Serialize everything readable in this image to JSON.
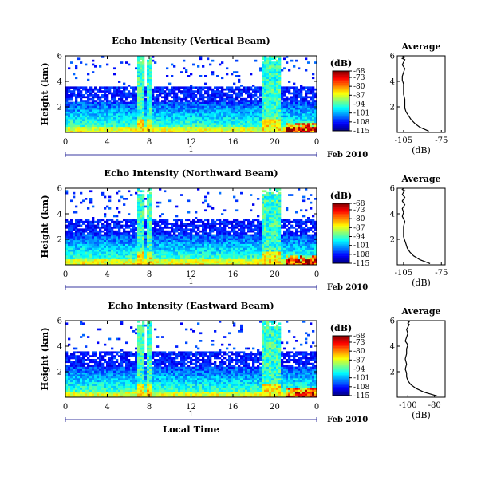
{
  "chart_data": [
    {
      "type": "heatmap",
      "title": "Echo Intensity (Vertical Beam)",
      "ylabel": "Height (km)",
      "xlabel": "",
      "xticks": [
        "0",
        "4",
        "8",
        "12",
        "16",
        "20",
        "0"
      ],
      "yticks": [
        "2",
        "4",
        "6"
      ],
      "xlim": [
        0,
        24
      ],
      "ylim": [
        0,
        6
      ],
      "date_label": "Feb 2010",
      "day_marker": "1",
      "colorbar": {
        "unit": "(dB)",
        "ticks": [
          "-68",
          "-73",
          "-80",
          "-87",
          "-94",
          "-101",
          "-108",
          "-115"
        ],
        "range": [
          -115,
          -68
        ]
      },
      "average_profile": {
        "title": "Average",
        "xlabel": "(dB)",
        "xticks": [
          "-105",
          "-75"
        ],
        "xlim": [
          -110,
          -72
        ],
        "yticks": [
          "2",
          "4",
          "6"
        ],
        "x": [
          -85,
          -92,
          -96,
          -99,
          -101,
          -103,
          -104,
          -104,
          -104,
          -105,
          -105,
          -105,
          -106,
          -106,
          -105,
          -104,
          -106,
          -105,
          -104,
          -106,
          -104,
          -106
        ],
        "y": [
          0.1,
          0.4,
          0.7,
          1.0,
          1.3,
          1.6,
          1.9,
          2.2,
          2.6,
          3.0,
          3.4,
          3.8,
          4.1,
          4.4,
          4.7,
          5.0,
          5.3,
          5.5,
          5.7,
          5.8,
          5.9,
          6.0
        ]
      }
    },
    {
      "type": "heatmap",
      "title": "Echo Intensity (Northward Beam)",
      "ylabel": "Height (km)",
      "xlabel": "",
      "xticks": [
        "0",
        "4",
        "8",
        "12",
        "16",
        "20",
        "0"
      ],
      "yticks": [
        "2",
        "4",
        "6"
      ],
      "xlim": [
        0,
        24
      ],
      "ylim": [
        0,
        6
      ],
      "date_label": "Feb 2010",
      "day_marker": "1",
      "colorbar": {
        "unit": "(dB)",
        "ticks": [
          "-68",
          "-73",
          "-80",
          "-87",
          "-94",
          "-101",
          "-108",
          "-115"
        ],
        "range": [
          -115,
          -68
        ]
      },
      "average_profile": {
        "title": "Average",
        "xlabel": "(dB)",
        "xticks": [
          "-105",
          "-75"
        ],
        "xlim": [
          -110,
          -72
        ],
        "yticks": [
          "2",
          "4",
          "6"
        ],
        "x": [
          -84,
          -92,
          -97,
          -100,
          -102,
          -103,
          -104,
          -105,
          -105,
          -105,
          -104,
          -106,
          -105,
          -106,
          -104,
          -106,
          -104,
          -106,
          -105,
          -104,
          -106,
          -105
        ],
        "y": [
          0.1,
          0.4,
          0.7,
          1.0,
          1.3,
          1.6,
          1.9,
          2.2,
          2.6,
          3.0,
          3.4,
          3.8,
          4.1,
          4.4,
          4.7,
          5.0,
          5.3,
          5.5,
          5.7,
          5.8,
          5.9,
          6.0
        ]
      }
    },
    {
      "type": "heatmap",
      "title": "Echo Intensity (Eastward Beam)",
      "ylabel": "Height (km)",
      "xlabel": "Local Time",
      "xticks": [
        "0",
        "4",
        "8",
        "12",
        "16",
        "20",
        "0"
      ],
      "yticks": [
        "2",
        "4",
        "6"
      ],
      "xlim": [
        0,
        24
      ],
      "ylim": [
        0,
        6
      ],
      "date_label": "Feb 2010",
      "day_marker": "1",
      "colorbar": {
        "unit": "(dB)",
        "ticks": [
          "-68",
          "-73",
          "-80",
          "-87",
          "-94",
          "-101",
          "-108",
          "-115"
        ],
        "range": [
          -115,
          -68
        ]
      },
      "average_profile": {
        "title": "Average",
        "xlabel": "(dB)",
        "xticks": [
          "-100",
          "-80"
        ],
        "xlim": [
          -108,
          -72
        ],
        "yticks": [
          "2",
          "4",
          "6"
        ],
        "x": [
          -78,
          -88,
          -94,
          -98,
          -100,
          -101,
          -101,
          -102,
          -101,
          -102,
          -101,
          -101,
          -100,
          -102,
          -101,
          -100,
          -101,
          -100,
          -99,
          -100,
          -99,
          -101
        ],
        "y": [
          0.1,
          0.4,
          0.7,
          1.0,
          1.3,
          1.6,
          1.9,
          2.2,
          2.6,
          3.0,
          3.4,
          3.8,
          4.1,
          4.4,
          4.7,
          5.0,
          5.3,
          5.5,
          5.7,
          5.8,
          5.9,
          6.0
        ]
      }
    }
  ]
}
